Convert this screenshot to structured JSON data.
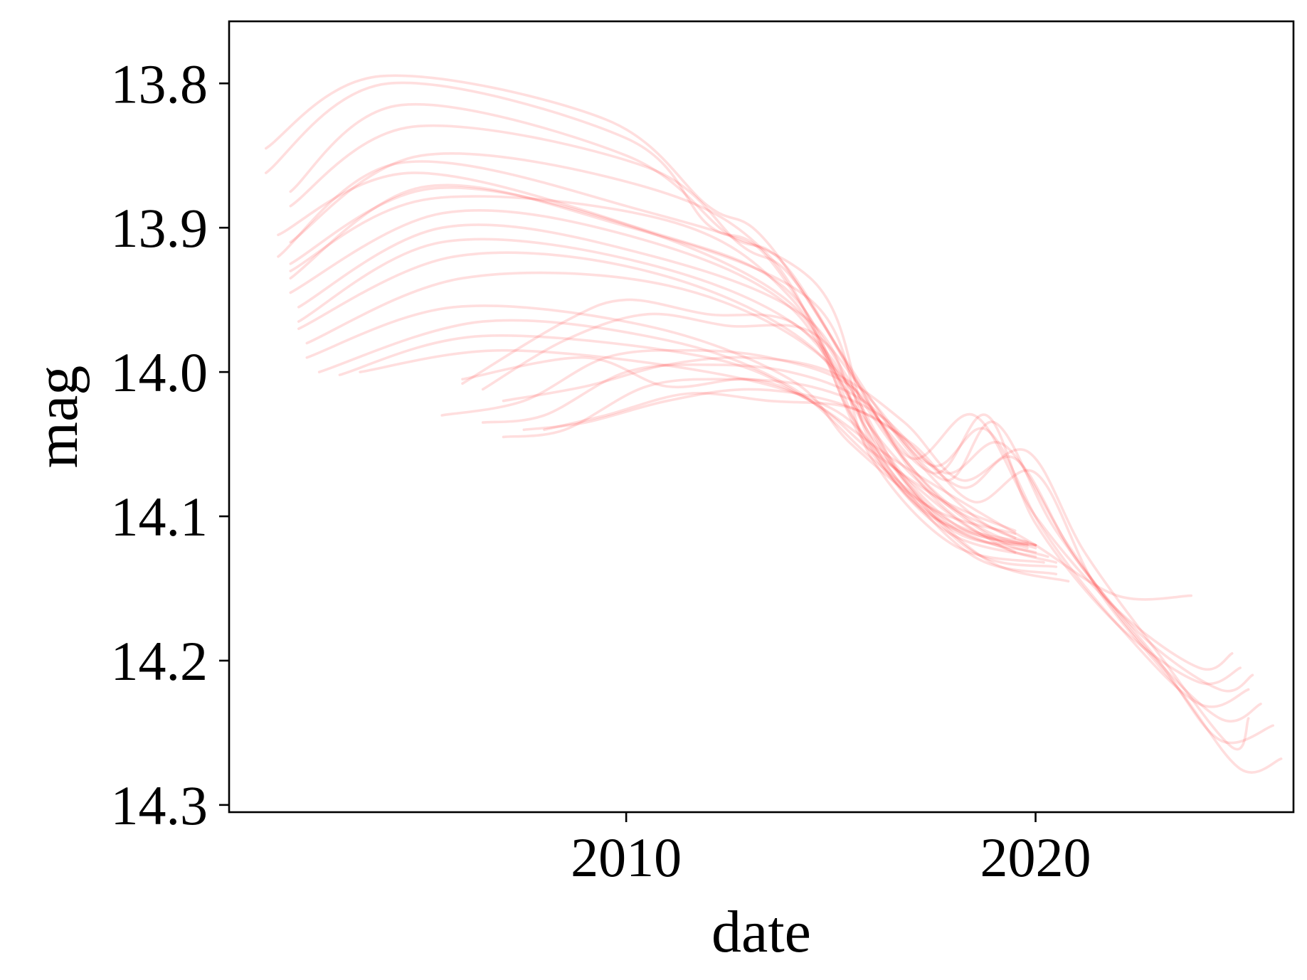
{
  "chart_data": {
    "type": "line",
    "xlabel": "date",
    "ylabel": "mag",
    "xlim": [
      2000.3,
      2026.3
    ],
    "ylim": [
      14.305,
      13.757
    ],
    "y_inverted": true,
    "x_ticks": [
      2010,
      2020
    ],
    "y_ticks": [
      13.8,
      13.9,
      14.0,
      14.1,
      14.2,
      14.3
    ],
    "y_tick_labels": [
      "13.8",
      "13.9",
      "14.0",
      "14.1",
      "14.2",
      "14.3"
    ],
    "grid": false,
    "legend": "none",
    "line_color": "#ff2222",
    "line_alpha": 0.15,
    "series": [
      {
        "x": [
          2001.5,
          2004.8,
          2010.5,
          2014.0,
          2015.8,
          2017.5,
          2019.8
        ],
        "y": [
          13.905,
          13.862,
          13.902,
          13.945,
          14.045,
          14.1,
          14.122
        ]
      },
      {
        "x": [
          2001.8,
          2005.2,
          2010.0,
          2014.0,
          2015.5,
          2017.2,
          2019.5
        ],
        "y": [
          13.925,
          13.873,
          13.898,
          13.952,
          14.03,
          14.095,
          14.125
        ]
      },
      {
        "x": [
          2001.8,
          2005.0,
          2009.5,
          2014.5,
          2016.0,
          2018.0,
          2019.8
        ],
        "y": [
          13.935,
          13.872,
          13.895,
          13.95,
          14.05,
          14.11,
          14.12
        ]
      },
      {
        "x": [
          2001.5,
          2004.5,
          2010.0,
          2014.5,
          2016.0,
          2018.0,
          2020.0
        ],
        "y": [
          13.92,
          13.855,
          13.885,
          13.935,
          14.04,
          14.105,
          14.12
        ]
      },
      {
        "x": [
          2001.8,
          2005.5,
          2010.0,
          2014.0,
          2015.8,
          2017.8,
          2020.0
        ],
        "y": [
          13.945,
          13.89,
          13.905,
          13.955,
          14.048,
          14.11,
          14.128
        ]
      },
      {
        "x": [
          2002.0,
          2005.5,
          2010.0,
          2014.5,
          2016.0,
          2018.0,
          2020.2
        ],
        "y": [
          13.955,
          13.9,
          13.915,
          13.965,
          14.06,
          14.12,
          14.132
        ]
      },
      {
        "x": [
          2002.0,
          2005.5,
          2010.5,
          2014.5,
          2016.5,
          2018.5,
          2020.5
        ],
        "y": [
          13.965,
          13.91,
          13.925,
          13.975,
          14.065,
          14.125,
          14.135
        ]
      },
      {
        "x": [
          2002.0,
          2005.8,
          2010.5,
          2014.5,
          2016.5,
          2018.5,
          2020.5
        ],
        "y": [
          13.97,
          13.92,
          13.93,
          13.982,
          14.07,
          14.128,
          14.14
        ]
      },
      {
        "x": [
          2001.8,
          2005.0,
          2010.5,
          2013.5,
          2015.5,
          2017.5,
          2019.5
        ],
        "y": [
          13.91,
          13.85,
          13.872,
          13.92,
          14.02,
          14.085,
          14.115
        ]
      },
      {
        "x": [
          2001.8,
          2005.2,
          2011.0,
          2014.0,
          2016.0,
          2018.0,
          2020.0
        ],
        "y": [
          13.93,
          13.88,
          13.895,
          13.948,
          14.045,
          14.108,
          14.125
        ]
      },
      {
        "x": [
          2002.2,
          2006.0,
          2011.0,
          2014.8,
          2016.8,
          2018.8,
          2020.8
        ],
        "y": [
          13.98,
          13.935,
          13.94,
          13.99,
          14.075,
          14.13,
          14.145
        ]
      },
      {
        "x": [
          2002.2,
          2005.8,
          2010.5,
          2014.0,
          2015.5,
          2017.5,
          2019.5
        ],
        "y": [
          13.99,
          13.955,
          13.968,
          14.005,
          14.05,
          14.095,
          14.112
        ]
      },
      {
        "x": [
          2002.5,
          2006.5,
          2011.0,
          2014.0,
          2016.0,
          2018.0,
          2019.8
        ],
        "y": [
          14.0,
          13.965,
          13.978,
          14.01,
          14.06,
          14.105,
          14.118
        ]
      },
      {
        "x": [
          2003.0,
          2006.5,
          2012.0,
          2014.5,
          2016.0,
          2017.8,
          2019.5
        ],
        "y": [
          14.002,
          13.975,
          13.99,
          14.02,
          14.055,
          14.09,
          14.11
        ]
      },
      {
        "x": [
          2003.5,
          2007.0,
          2012.0,
          2015.0,
          2016.5,
          2018.5,
          2020.0
        ],
        "y": [
          14.0,
          13.985,
          14.0,
          14.025,
          14.065,
          14.11,
          14.12
        ]
      },
      {
        "x": [
          2001.2,
          2004.0,
          2009.5,
          2012.0,
          2013.5,
          2016.5,
          2018.5,
          2020.0
        ],
        "y": [
          13.845,
          13.795,
          13.825,
          13.885,
          13.912,
          14.04,
          14.1,
          14.12
        ]
      },
      {
        "x": [
          2001.2,
          2004.2,
          2010.0,
          2012.0,
          2013.5,
          2016.5,
          2018.5,
          2020.0
        ],
        "y": [
          13.862,
          13.8,
          13.838,
          13.898,
          13.922,
          14.05,
          14.105,
          14.122
        ]
      },
      {
        "x": [
          2001.8,
          2004.5,
          2010.0,
          2012.5,
          2014.0,
          2016.8,
          2018.8,
          2020.3
        ],
        "y": [
          13.875,
          13.815,
          13.85,
          13.905,
          13.93,
          14.06,
          14.112,
          14.128
        ]
      },
      {
        "x": [
          2001.8,
          2004.8,
          2010.5,
          2012.8,
          2014.2,
          2017.0,
          2019.0,
          2020.5
        ],
        "y": [
          13.885,
          13.83,
          13.858,
          13.912,
          13.94,
          14.07,
          14.118,
          14.132
        ]
      },
      {
        "x": [
          2006.0,
          2009.0,
          2011.0,
          2013.0,
          2014.5,
          2016.5,
          2018.5,
          2020.0,
          2022.0,
          2023.8
        ],
        "y": [
          14.005,
          13.99,
          14.01,
          14.005,
          14.02,
          14.06,
          14.095,
          14.12,
          14.155,
          14.155
        ]
      },
      {
        "x": [
          2006.0,
          2008.5,
          2010.0,
          2012.0,
          2014.0,
          2015.5,
          2017.5,
          2018.8,
          2020.0,
          2022.0,
          2024.0,
          2025.0
        ],
        "y": [
          14.008,
          13.965,
          13.95,
          13.96,
          13.965,
          14.01,
          14.07,
          14.03,
          14.105,
          14.175,
          14.215,
          14.205
        ]
      },
      {
        "x": [
          2006.5,
          2008.5,
          2010.5,
          2012.5,
          2014.5,
          2016.0,
          2017.8,
          2019.0,
          2020.5,
          2022.5,
          2024.5,
          2025.3
        ],
        "y": [
          14.012,
          13.978,
          13.96,
          13.968,
          13.972,
          14.02,
          14.075,
          14.035,
          14.11,
          14.18,
          14.22,
          14.21
        ]
      },
      {
        "x": [
          2005.5,
          2007.5,
          2009.5,
          2011.5,
          2013.5,
          2015.5,
          2017.0,
          2018.5,
          2020.0,
          2022.0,
          2024.0,
          2024.8
        ],
        "y": [
          14.03,
          14.02,
          13.99,
          13.985,
          13.99,
          14.01,
          14.06,
          14.03,
          14.1,
          14.165,
          14.205,
          14.195
        ]
      },
      {
        "x": [
          2006.5,
          2008.0,
          2010.0,
          2012.0,
          2014.0,
          2015.8,
          2017.5,
          2018.8,
          2020.2,
          2022.0,
          2024.0,
          2025.2
        ],
        "y": [
          14.035,
          14.03,
          14.0,
          13.995,
          14.0,
          14.02,
          14.065,
          14.04,
          14.11,
          14.175,
          14.23,
          14.22
        ]
      },
      {
        "x": [
          2007.0,
          2008.5,
          2010.5,
          2012.5,
          2014.5,
          2016.2,
          2017.8,
          2019.2,
          2020.8,
          2022.5,
          2024.5,
          2025.5
        ],
        "y": [
          14.045,
          14.04,
          14.01,
          14.005,
          14.01,
          14.03,
          14.07,
          14.05,
          14.12,
          14.185,
          14.24,
          14.23
        ]
      },
      {
        "x": [
          2007.5,
          2009.0,
          2011.0,
          2013.0,
          2015.0,
          2016.5,
          2018.2,
          2019.5,
          2021.0,
          2023.0,
          2024.5,
          2025.8
        ],
        "y": [
          14.04,
          14.035,
          14.02,
          14.012,
          14.02,
          14.04,
          14.08,
          14.06,
          14.13,
          14.2,
          14.255,
          14.245
        ]
      },
      {
        "x": [
          2008.0,
          2009.5,
          2011.5,
          2013.5,
          2015.5,
          2017.0,
          2018.5,
          2020.0,
          2021.5,
          2023.5,
          2025.0,
          2026.0
        ],
        "y": [
          14.04,
          14.03,
          14.015,
          14.02,
          14.025,
          14.05,
          14.09,
          14.07,
          14.15,
          14.22,
          14.275,
          14.268
        ]
      },
      {
        "x": [
          2007.0,
          2009.0,
          2011.0,
          2013.0,
          2015.0,
          2016.8,
          2018.2,
          2019.8,
          2021.2,
          2023.0,
          2024.8,
          2025.2
        ],
        "y": [
          14.02,
          14.01,
          13.995,
          13.99,
          14.0,
          14.035,
          14.075,
          14.055,
          14.125,
          14.195,
          14.26,
          14.24
        ]
      }
    ]
  }
}
